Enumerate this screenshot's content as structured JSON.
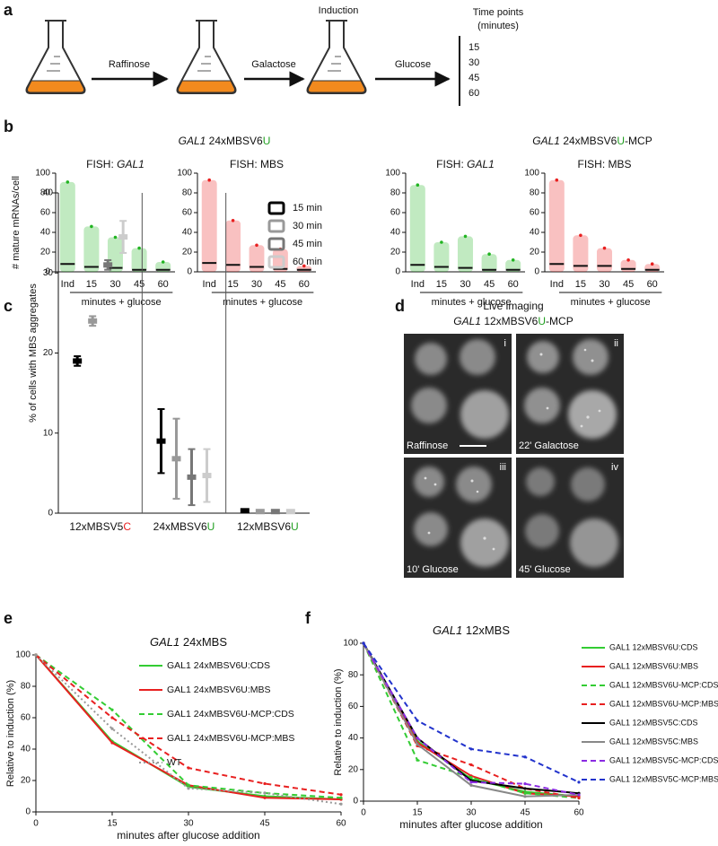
{
  "panel_a": {
    "label": "a",
    "steps": [
      "Raffinose",
      "Galactose",
      "Glucose"
    ],
    "induction": "Induction",
    "time_title": [
      "Time points",
      "(minutes)"
    ],
    "time_points": [
      15,
      30,
      45,
      60
    ]
  },
  "panel_b": {
    "label": "b",
    "headers": [
      [
        "GAL1",
        " 24xMBSV6",
        "U"
      ],
      [
        "GAL1",
        " 24xMBSV6",
        "U",
        "-MCP"
      ]
    ]
  },
  "panel_c": {
    "label": "c"
  },
  "panel_d": {
    "label": "d",
    "title": "Live imaging",
    "subtitle": [
      "GAL1",
      " 12xMBSV6",
      "U",
      "-MCP"
    ],
    "panes": [
      {
        "index": "i",
        "caption": "Raffinose"
      },
      {
        "index": "ii",
        "caption": "22' Galactose"
      },
      {
        "index": "iii",
        "caption": "10' Glucose"
      },
      {
        "index": "iv",
        "caption": "45' Glucose"
      }
    ]
  },
  "panel_e": {
    "label": "e"
  },
  "panel_f": {
    "label": "f"
  },
  "chart_data": [
    {
      "type": "dotplot",
      "title": [
        "FISH: ",
        "GAL1"
      ],
      "ylabel": "# mature mRNAs/cell",
      "categories": [
        "Ind",
        "15",
        "30",
        "45",
        "60"
      ],
      "xlabel": "minutes + glucose",
      "max": [
        91,
        46,
        35,
        24,
        10
      ],
      "median": [
        8,
        5,
        4,
        2,
        2
      ],
      "color": "#22b422",
      "ylim": [
        0,
        100
      ],
      "yticks": [
        0,
        20,
        40,
        60,
        80,
        100
      ]
    },
    {
      "type": "dotplot",
      "title": [
        "FISH: MBS"
      ],
      "categories": [
        "Ind",
        "15",
        "30",
        "45",
        "60"
      ],
      "xlabel": "minutes + glucose",
      "max": [
        93,
        52,
        27,
        23,
        6
      ],
      "median": [
        9,
        7,
        5,
        3,
        2
      ],
      "color": "#e82020",
      "ylim": [
        0,
        100
      ],
      "yticks": [
        0,
        20,
        40,
        60,
        80,
        100
      ]
    },
    {
      "type": "dotplot",
      "title": [
        "FISH: ",
        "GAL1"
      ],
      "categories": [
        "Ind",
        "15",
        "30",
        "45",
        "60"
      ],
      "xlabel": "minutes + glucose",
      "max": [
        88,
        30,
        36,
        18,
        12
      ],
      "median": [
        7,
        5,
        4,
        2,
        2
      ],
      "color": "#22b422",
      "ylim": [
        0,
        100
      ],
      "yticks": [
        0,
        20,
        40,
        60,
        80,
        100
      ]
    },
    {
      "type": "dotplot",
      "title": [
        "FISH: MBS"
      ],
      "categories": [
        "Ind",
        "15",
        "30",
        "45",
        "60"
      ],
      "xlabel": "minutes + glucose",
      "max": [
        93,
        37,
        24,
        12,
        8
      ],
      "median": [
        8,
        6,
        6,
        3,
        2
      ],
      "color": "#e82020",
      "ylim": [
        0,
        100
      ],
      "yticks": [
        0,
        20,
        40,
        60,
        80,
        100
      ]
    },
    {
      "type": "errorpoint",
      "ylabel": "% of cells with MBS aggregates",
      "categories": [
        [
          "12xMBSV5",
          "C"
        ],
        [
          "24xMBSV6",
          "U"
        ],
        [
          "12xMBSV6",
          "U"
        ]
      ],
      "series": [
        {
          "name": "15 min",
          "color": "#000000",
          "values": [
            19,
            9,
            0.3
          ],
          "errors": [
            0.6,
            4,
            0.2
          ]
        },
        {
          "name": "30 min",
          "color": "#999999",
          "values": [
            24,
            6.8,
            0.2
          ],
          "errors": [
            0.6,
            5,
            0.1
          ]
        },
        {
          "name": "45 min",
          "color": "#777777",
          "values": [
            31,
            4.5,
            0.2
          ],
          "errors": [
            0.6,
            3.5,
            0.1
          ]
        },
        {
          "name": "60 min",
          "color": "#cccccc",
          "values": [
            34.5,
            4.7,
            0.2
          ],
          "errors": [
            2,
            3.3,
            0.1
          ]
        }
      ],
      "ylim": [
        0,
        40
      ],
      "yticks": [
        0,
        10,
        20,
        30,
        40
      ]
    },
    {
      "type": "line",
      "title": [
        "GAL1",
        " 24xMBS"
      ],
      "xlabel": "minutes after glucose addition",
      "ylabel": "Relative to induction (%)",
      "x": [
        0,
        15,
        30,
        45,
        60
      ],
      "xlim": [
        0,
        60
      ],
      "xticks": [
        0,
        15,
        30,
        45,
        60
      ],
      "ylim": [
        0,
        100
      ],
      "yticks": [
        0,
        20,
        40,
        60,
        80,
        100
      ],
      "series": [
        {
          "name": "GAL1 24xMBSV6U:CDS",
          "color": "#33cc33",
          "dash": "solid",
          "values": [
            100,
            45,
            16,
            10,
            8
          ]
        },
        {
          "name": "GAL1 24xMBSV6U:MBS",
          "color": "#e82020",
          "dash": "solid",
          "values": [
            100,
            44,
            17,
            9,
            8
          ]
        },
        {
          "name": "GAL1 24xMBSV6U-MCP:CDS",
          "color": "#33cc33",
          "dash": "dashed",
          "values": [
            100,
            65,
            17,
            12,
            9
          ]
        },
        {
          "name": "GAL1 24xMBSV6U-MCP:MBS",
          "color": "#e82020",
          "dash": "dashed",
          "values": [
            100,
            60,
            28,
            18,
            11
          ]
        },
        {
          "name": "WT",
          "color": "#999999",
          "dash": "dotted",
          "values": [
            100,
            53,
            15,
            12,
            5
          ]
        }
      ]
    },
    {
      "type": "line",
      "title": [
        "GAL1",
        " 12xMBS"
      ],
      "xlabel": "minutes after glucose addition",
      "ylabel": "Relative to induction (%)",
      "x": [
        0,
        15,
        30,
        45,
        60
      ],
      "xlim": [
        0,
        60
      ],
      "xticks": [
        0,
        15,
        30,
        45,
        60
      ],
      "ylim": [
        0,
        100
      ],
      "yticks": [
        0,
        20,
        40,
        60,
        80,
        100
      ],
      "series": [
        {
          "name": "GAL1 12xMBSV6U:CDS",
          "color": "#33cc33",
          "dash": "solid",
          "values": [
            100,
            38,
            14,
            6,
            3
          ]
        },
        {
          "name": "GAL1 12xMBSV6U:MBS",
          "color": "#e82020",
          "dash": "solid",
          "values": [
            100,
            37,
            16,
            5,
            3
          ]
        },
        {
          "name": "GAL1 12xMBSV6U-MCP:CDS",
          "color": "#33cc33",
          "dash": "dashed",
          "values": [
            100,
            26,
            15,
            5,
            2
          ]
        },
        {
          "name": "GAL1 12xMBSV6U-MCP:MBS",
          "color": "#e82020",
          "dash": "dashed",
          "values": [
            100,
            35,
            23,
            8,
            2
          ]
        },
        {
          "name": "GAL1 12xMBSV5C:CDS",
          "color": "#000000",
          "dash": "solid",
          "values": [
            100,
            40,
            13,
            8,
            5
          ]
        },
        {
          "name": "GAL1 12xMBSV5C:MBS",
          "color": "#888888",
          "dash": "solid",
          "values": [
            100,
            36,
            10,
            3,
            4
          ]
        },
        {
          "name": "GAL1 12xMBSV5C-MCP:CDS",
          "color": "#8a2be2",
          "dash": "dashed",
          "values": [
            100,
            40,
            12,
            11,
            4
          ]
        },
        {
          "name": "GAL1 12xMBSV5C-MCP:MBS",
          "color": "#2233cc",
          "dash": "dashed",
          "values": [
            100,
            51,
            33,
            28,
            12
          ]
        }
      ]
    }
  ]
}
